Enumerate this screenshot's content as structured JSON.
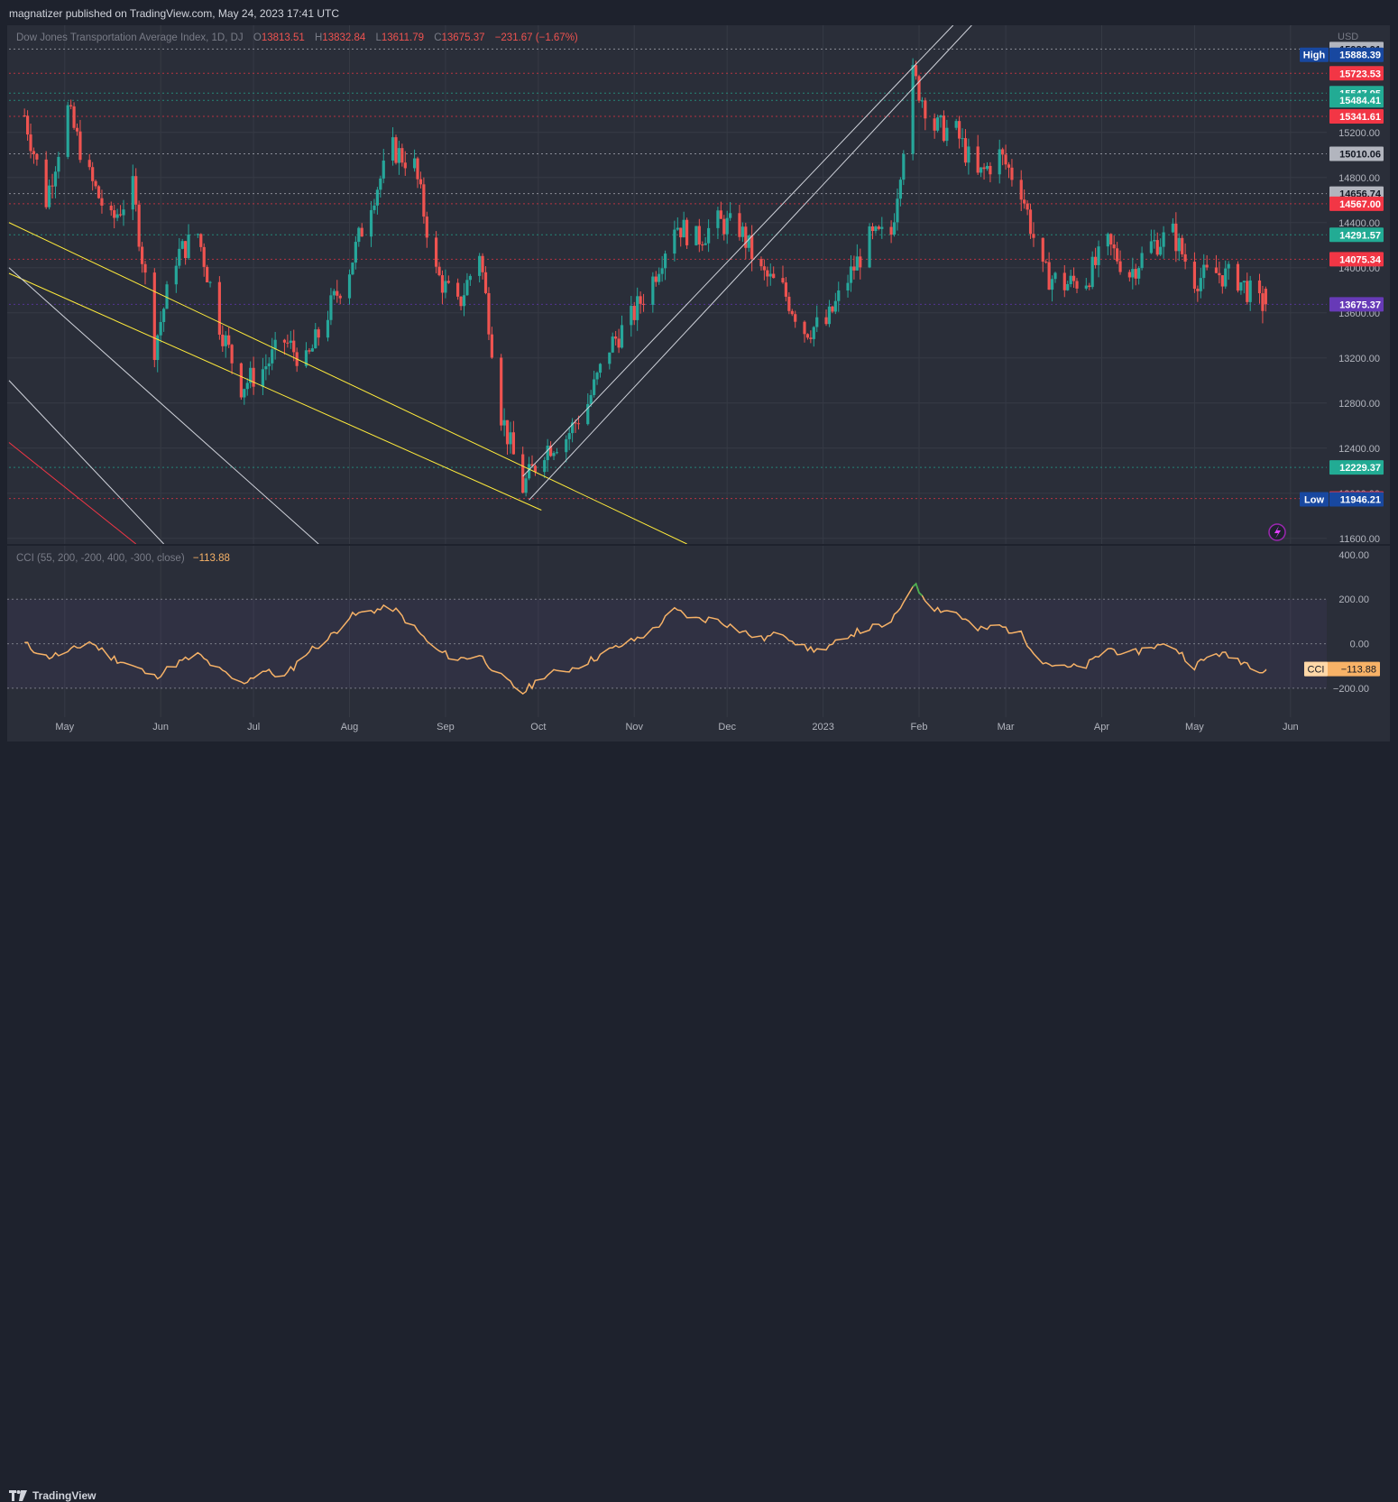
{
  "header": {
    "published_text": "magnatizer published on TradingView.com, May 24, 2023 17:41 UTC"
  },
  "legend": {
    "symbol": "Dow Jones Transportation Average Index, 1D, DJ",
    "o_label": "O",
    "o": "13813.51",
    "h_label": "H",
    "h": "13832.84",
    "l_label": "L",
    "l": "13611.79",
    "c_label": "C",
    "c": "13675.37",
    "change": "−231.67 (−1.67%)"
  },
  "price_axis": {
    "currency": "USD",
    "ticks": [
      "15200.00",
      "14800.00",
      "14400.00",
      "14000.00",
      "13600.00",
      "13200.00",
      "12800.00",
      "12400.00",
      "12000.00",
      "11600.00"
    ]
  },
  "price_labels": [
    {
      "text": "15938.91",
      "bg": "#b2b5be",
      "fg": "#131722",
      "value": 15938.91
    },
    {
      "prefix": "High",
      "text": "15888.39",
      "bg": "#1848a0",
      "fg": "#ffffff",
      "value": 15888.39
    },
    {
      "text": "15723.53",
      "bg": "#f23645",
      "fg": "#ffffff",
      "value": 15723.53
    },
    {
      "text": "15547.95",
      "bg": "#22ab94",
      "fg": "#ffffff",
      "value": 15547.95
    },
    {
      "text": "15484.41",
      "bg": "#22ab94",
      "fg": "#ffffff",
      "value": 15484.41
    },
    {
      "text": "15341.61",
      "bg": "#f23645",
      "fg": "#ffffff",
      "value": 15341.61
    },
    {
      "text": "15010.06",
      "bg": "#b2b5be",
      "fg": "#131722",
      "value": 15010.06
    },
    {
      "text": "14656.74",
      "bg": "#b2b5be",
      "fg": "#131722",
      "value": 14656.74
    },
    {
      "text": "14567.00",
      "bg": "#f23645",
      "fg": "#ffffff",
      "value": 14567.0
    },
    {
      "text": "14291.57",
      "bg": "#22ab94",
      "fg": "#ffffff",
      "value": 14291.57
    },
    {
      "text": "14075.34",
      "bg": "#f23645",
      "fg": "#ffffff",
      "value": 14075.34
    },
    {
      "text": "13675.37",
      "bg": "#673ab7",
      "fg": "#ffffff",
      "value": 13675.37
    },
    {
      "text": "12229.37",
      "bg": "#22ab94",
      "fg": "#ffffff",
      "value": 12229.37
    },
    {
      "text": "11953.30",
      "bg": "#f23645",
      "fg": "#ffffff",
      "value": 11953.3
    },
    {
      "prefix": "Low",
      "text": "11946.21",
      "bg": "#1848a0",
      "fg": "#ffffff",
      "value": 11946.21
    }
  ],
  "cci": {
    "legend": "CCI (55, 200, -200, 400, -300, close)",
    "value": "−113.88",
    "label": "CCI",
    "ticks": [
      "400.00",
      "200.00",
      "0.00",
      "−200.00"
    ]
  },
  "time_axis": [
    "May",
    "Jun",
    "Jul",
    "Aug",
    "Sep",
    "Oct",
    "Nov",
    "Dec",
    "2023",
    "Feb",
    "Mar",
    "Apr",
    "May",
    "Jun"
  ],
  "footer": {
    "brand": "TradingView"
  },
  "colors": {
    "up": "#26a69a",
    "down": "#ef5350",
    "bg": "#2a2e39",
    "grid": "#363a45",
    "cci": "#f7b267",
    "trend": "#ffeb3b",
    "channel": "#d1d4dc"
  },
  "chart_data": {
    "type": "candlestick",
    "title": "Dow Jones Transportation Average Index, 1D, DJ",
    "ylim": [
      11550,
      16150
    ],
    "price_path": [
      [
        "Apr 18 2022",
        15350
      ],
      [
        "Apr 25 2022",
        14600
      ],
      [
        "May 2 2022",
        15400
      ],
      [
        "May 9 2022",
        14800
      ],
      [
        "May 16 2022",
        14400
      ],
      [
        "May 23 2022",
        14700
      ],
      [
        "May 30 2022",
        13300
      ],
      [
        "Jun 6 2022",
        14100
      ],
      [
        "Jun 13 2022",
        14300
      ],
      [
        "Jun 20 2022",
        13500
      ],
      [
        "Jun 27 2022",
        12950
      ],
      [
        "Jul 4 2022",
        13100
      ],
      [
        "Jul 11 2022",
        13350
      ],
      [
        "Jul 18 2022",
        13150
      ],
      [
        "Jul 25 2022",
        13600
      ],
      [
        "Aug 1 2022",
        14000
      ],
      [
        "Aug 8 2022",
        14600
      ],
      [
        "Aug 15 2022",
        15050
      ],
      [
        "Aug 22 2022",
        14900
      ],
      [
        "Aug 29 2022",
        13950
      ],
      [
        "Sep 5 2022",
        13650
      ],
      [
        "Sep 12 2022",
        14150
      ],
      [
        "Sep 19 2022",
        12700
      ],
      [
        "Sep 26 2022",
        12050
      ],
      [
        "Oct 3 2022",
        12400
      ],
      [
        "Oct 10 2022",
        12500
      ],
      [
        "Oct 17 2022",
        12800
      ],
      [
        "Oct 24 2022",
        13300
      ],
      [
        "Oct 31 2022",
        13550
      ],
      [
        "Nov 7 2022",
        13900
      ],
      [
        "Nov 14 2022",
        14400
      ],
      [
        "Nov 21 2022",
        14250
      ],
      [
        "Nov 28 2022",
        14400
      ],
      [
        "Dec 5 2022",
        14350
      ],
      [
        "Dec 12 2022",
        13950
      ],
      [
        "Dec 19 2022",
        13800
      ],
      [
        "Dec 26 2022",
        13450
      ],
      [
        "Jan 2 2023",
        13500
      ],
      [
        "Jan 9 2023",
        13900
      ],
      [
        "Jan 16 2023",
        14250
      ],
      [
        "Jan 23 2023",
        14300
      ],
      [
        "Jan 30 2023",
        15700
      ],
      [
        "Feb 6 2023",
        15250
      ],
      [
        "Feb 13 2023",
        15200
      ],
      [
        "Feb 20 2023",
        14800
      ],
      [
        "Feb 27 2023",
        15000
      ],
      [
        "Mar 6 2023",
        14700
      ],
      [
        "Mar 13 2023",
        13950
      ],
      [
        "Mar 20 2023",
        13850
      ],
      [
        "Mar 27 2023",
        13900
      ],
      [
        "Apr 3 2023",
        14200
      ],
      [
        "Apr 10 2023",
        13950
      ],
      [
        "Apr 17 2023",
        14200
      ],
      [
        "Apr 24 2023",
        14300
      ],
      [
        "May 1 2023",
        13900
      ],
      [
        "May 8 2023",
        13950
      ],
      [
        "May 15 2023",
        13900
      ],
      [
        "May 22 2023",
        13675.37
      ]
    ],
    "ohlc_last": {
      "date": "May 24 2023",
      "open": 13813.51,
      "high": 13832.84,
      "low": 13611.79,
      "close": 13675.37
    },
    "cci_ylim": [
      -330,
      440
    ],
    "cci_path": [
      [
        "Apr 18 2022",
        0
      ],
      [
        "Apr 25 2022",
        -60
      ],
      [
        "May 2 2022",
        -40
      ],
      [
        "May 9 2022",
        10
      ],
      [
        "May 16 2022",
        -60
      ],
      [
        "May 23 2022",
        -100
      ],
      [
        "May 30 2022",
        -150
      ],
      [
        "Jun 6 2022",
        -90
      ],
      [
        "Jun 13 2022",
        -50
      ],
      [
        "Jun 20 2022",
        -120
      ],
      [
        "Jun 27 2022",
        -180
      ],
      [
        "Jul 4 2022",
        -120
      ],
      [
        "Jul 11 2022",
        -150
      ],
      [
        "Jul 18 2022",
        -40
      ],
      [
        "Jul 25 2022",
        20
      ],
      [
        "Aug 1 2022",
        120
      ],
      [
        "Aug 8 2022",
        150
      ],
      [
        "Aug 15 2022",
        160
      ],
      [
        "Aug 22 2022",
        70
      ],
      [
        "Aug 29 2022",
        -30
      ],
      [
        "Sep 5 2022",
        -70
      ],
      [
        "Sep 12 2022",
        -50
      ],
      [
        "Sep 19 2022",
        -150
      ],
      [
        "Sep 26 2022",
        -220
      ],
      [
        "Oct 3 2022",
        -140
      ],
      [
        "Oct 10 2022",
        -120
      ],
      [
        "Oct 17 2022",
        -80
      ],
      [
        "Oct 24 2022",
        -30
      ],
      [
        "Oct 31 2022",
        10
      ],
      [
        "Nov 7 2022",
        60
      ],
      [
        "Nov 14 2022",
        150
      ],
      [
        "Nov 21 2022",
        110
      ],
      [
        "Nov 28 2022",
        110
      ],
      [
        "Dec 5 2022",
        60
      ],
      [
        "Dec 12 2022",
        20
      ],
      [
        "Dec 19 2022",
        50
      ],
      [
        "Dec 26 2022",
        -20
      ],
      [
        "Jan 2 2023",
        -30
      ],
      [
        "Jan 9 2023",
        40
      ],
      [
        "Jan 16 2023",
        70
      ],
      [
        "Jan 23 2023",
        90
      ],
      [
        "Jan 30 2023",
        270
      ],
      [
        "Feb 6 2023",
        160
      ],
      [
        "Feb 13 2023",
        140
      ],
      [
        "Feb 20 2023",
        60
      ],
      [
        "Feb 27 2023",
        80
      ],
      [
        "Mar 6 2023",
        40
      ],
      [
        "Mar 13 2023",
        -80
      ],
      [
        "Mar 20 2023",
        -110
      ],
      [
        "Mar 27 2023",
        -100
      ],
      [
        "Apr 3 2023",
        -20
      ],
      [
        "Apr 10 2023",
        -50
      ],
      [
        "Apr 17 2023",
        -10
      ],
      [
        "Apr 24 2023",
        -10
      ],
      [
        "May 1 2023",
        -100
      ],
      [
        "May 8 2023",
        -40
      ],
      [
        "May 15 2023",
        -70
      ],
      [
        "May 22 2023",
        -113.88
      ]
    ]
  }
}
